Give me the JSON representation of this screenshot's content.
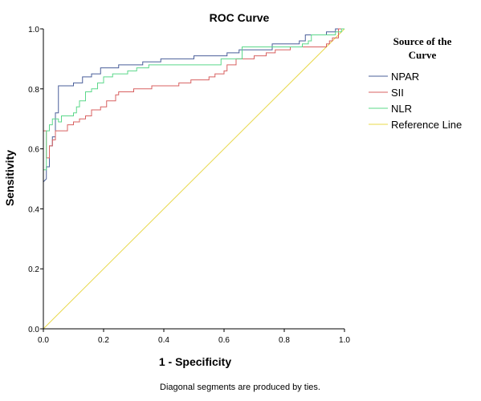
{
  "chart_data": {
    "type": "line",
    "title": "ROC Curve",
    "xlabel": "1 - Specificity",
    "ylabel": "Sensitivity",
    "xlim": [
      0,
      1
    ],
    "ylim": [
      0,
      1
    ],
    "x_ticks": [
      "0.0",
      "0.2",
      "0.4",
      "0.6",
      "0.8",
      "1.0"
    ],
    "y_ticks": [
      "0.0",
      "0.2",
      "0.4",
      "0.6",
      "0.8",
      "1.0"
    ],
    "legend": {
      "title_line1": "Source of the",
      "title_line2": "Curve",
      "position": "right"
    },
    "footnote": "Diagonal segments are produced by ties.",
    "series": [
      {
        "name": "NPAR",
        "color": "#4a5f9a",
        "points": [
          [
            0,
            0
          ],
          [
            0,
            0.49
          ],
          [
            0.01,
            0.5
          ],
          [
            0.01,
            0.54
          ],
          [
            0.02,
            0.54
          ],
          [
            0.02,
            0.61
          ],
          [
            0.03,
            0.61
          ],
          [
            0.03,
            0.64
          ],
          [
            0.04,
            0.64
          ],
          [
            0.04,
            0.72
          ],
          [
            0.05,
            0.72
          ],
          [
            0.05,
            0.81
          ],
          [
            0.1,
            0.81
          ],
          [
            0.1,
            0.82
          ],
          [
            0.13,
            0.82
          ],
          [
            0.13,
            0.84
          ],
          [
            0.16,
            0.84
          ],
          [
            0.16,
            0.85
          ],
          [
            0.19,
            0.85
          ],
          [
            0.19,
            0.87
          ],
          [
            0.25,
            0.87
          ],
          [
            0.25,
            0.88
          ],
          [
            0.33,
            0.88
          ],
          [
            0.33,
            0.89
          ],
          [
            0.39,
            0.89
          ],
          [
            0.39,
            0.9
          ],
          [
            0.5,
            0.9
          ],
          [
            0.5,
            0.91
          ],
          [
            0.61,
            0.91
          ],
          [
            0.61,
            0.92
          ],
          [
            0.65,
            0.92
          ],
          [
            0.65,
            0.93
          ],
          [
            0.76,
            0.93
          ],
          [
            0.76,
            0.95
          ],
          [
            0.85,
            0.95
          ],
          [
            0.85,
            0.96
          ],
          [
            0.87,
            0.96
          ],
          [
            0.87,
            0.98
          ],
          [
            0.94,
            0.98
          ],
          [
            0.94,
            0.99
          ],
          [
            0.97,
            0.99
          ],
          [
            0.97,
            1.0
          ],
          [
            1,
            1
          ]
        ]
      },
      {
        "name": "SII",
        "color": "#d86060",
        "points": [
          [
            0,
            0
          ],
          [
            0,
            0.66
          ],
          [
            0.01,
            0.66
          ],
          [
            0.01,
            0.57
          ],
          [
            0.02,
            0.57
          ],
          [
            0.02,
            0.61
          ],
          [
            0.03,
            0.61
          ],
          [
            0.03,
            0.63
          ],
          [
            0.04,
            0.63
          ],
          [
            0.04,
            0.66
          ],
          [
            0.08,
            0.66
          ],
          [
            0.08,
            0.68
          ],
          [
            0.1,
            0.68
          ],
          [
            0.1,
            0.69
          ],
          [
            0.12,
            0.69
          ],
          [
            0.12,
            0.7
          ],
          [
            0.14,
            0.7
          ],
          [
            0.14,
            0.71
          ],
          [
            0.16,
            0.71
          ],
          [
            0.16,
            0.73
          ],
          [
            0.19,
            0.73
          ],
          [
            0.19,
            0.74
          ],
          [
            0.21,
            0.74
          ],
          [
            0.21,
            0.76
          ],
          [
            0.24,
            0.76
          ],
          [
            0.24,
            0.78
          ],
          [
            0.25,
            0.78
          ],
          [
            0.25,
            0.79
          ],
          [
            0.3,
            0.79
          ],
          [
            0.3,
            0.8
          ],
          [
            0.36,
            0.8
          ],
          [
            0.36,
            0.81
          ],
          [
            0.45,
            0.81
          ],
          [
            0.45,
            0.82
          ],
          [
            0.49,
            0.82
          ],
          [
            0.49,
            0.83
          ],
          [
            0.55,
            0.83
          ],
          [
            0.55,
            0.84
          ],
          [
            0.57,
            0.84
          ],
          [
            0.57,
            0.85
          ],
          [
            0.6,
            0.85
          ],
          [
            0.6,
            0.86
          ],
          [
            0.61,
            0.86
          ],
          [
            0.61,
            0.88
          ],
          [
            0.64,
            0.88
          ],
          [
            0.64,
            0.9
          ],
          [
            0.7,
            0.9
          ],
          [
            0.7,
            0.91
          ],
          [
            0.74,
            0.91
          ],
          [
            0.74,
            0.92
          ],
          [
            0.77,
            0.92
          ],
          [
            0.77,
            0.93
          ],
          [
            0.82,
            0.93
          ],
          [
            0.82,
            0.94
          ],
          [
            0.94,
            0.94
          ],
          [
            0.94,
            0.95
          ],
          [
            0.95,
            0.95
          ],
          [
            0.95,
            0.96
          ],
          [
            0.96,
            0.96
          ],
          [
            0.96,
            0.97
          ],
          [
            0.98,
            0.97
          ],
          [
            0.98,
            1.0
          ],
          [
            1,
            1
          ]
        ]
      },
      {
        "name": "NLR",
        "color": "#5bd88a",
        "points": [
          [
            0,
            0
          ],
          [
            0,
            0.53
          ],
          [
            0.01,
            0.53
          ],
          [
            0.01,
            0.66
          ],
          [
            0.02,
            0.66
          ],
          [
            0.02,
            0.68
          ],
          [
            0.03,
            0.68
          ],
          [
            0.03,
            0.7
          ],
          [
            0.05,
            0.7
          ],
          [
            0.05,
            0.69
          ],
          [
            0.06,
            0.69
          ],
          [
            0.06,
            0.71
          ],
          [
            0.1,
            0.71
          ],
          [
            0.1,
            0.72
          ],
          [
            0.11,
            0.72
          ],
          [
            0.11,
            0.74
          ],
          [
            0.12,
            0.74
          ],
          [
            0.12,
            0.76
          ],
          [
            0.14,
            0.76
          ],
          [
            0.14,
            0.79
          ],
          [
            0.16,
            0.79
          ],
          [
            0.16,
            0.8
          ],
          [
            0.18,
            0.8
          ],
          [
            0.18,
            0.82
          ],
          [
            0.2,
            0.82
          ],
          [
            0.2,
            0.84
          ],
          [
            0.23,
            0.84
          ],
          [
            0.23,
            0.85
          ],
          [
            0.28,
            0.85
          ],
          [
            0.28,
            0.86
          ],
          [
            0.31,
            0.86
          ],
          [
            0.31,
            0.87
          ],
          [
            0.35,
            0.87
          ],
          [
            0.35,
            0.88
          ],
          [
            0.59,
            0.88
          ],
          [
            0.59,
            0.9
          ],
          [
            0.66,
            0.9
          ],
          [
            0.66,
            0.94
          ],
          [
            0.86,
            0.94
          ],
          [
            0.86,
            0.95
          ],
          [
            0.88,
            0.95
          ],
          [
            0.88,
            0.96
          ],
          [
            0.89,
            0.96
          ],
          [
            0.89,
            0.98
          ],
          [
            0.97,
            0.98
          ],
          [
            0.97,
            0.99
          ],
          [
            0.99,
            0.99
          ],
          [
            0.99,
            1.0
          ],
          [
            1,
            1
          ]
        ]
      },
      {
        "name": "Reference Line",
        "color": "#e8d84a",
        "points": [
          [
            0,
            0
          ],
          [
            1,
            1
          ]
        ]
      }
    ]
  }
}
